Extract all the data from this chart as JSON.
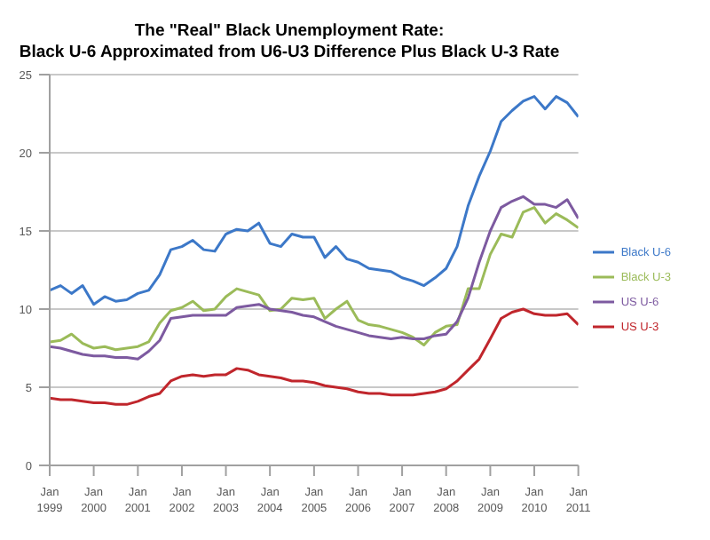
{
  "chart_data": {
    "type": "line",
    "title": "The \"Real\" Black Unemployment Rate:",
    "subtitle": "Black U-6 Approximated from U6-U3 Difference Plus Black U-3 Rate",
    "x": [
      "1999-01",
      "1999-04",
      "1999-07",
      "1999-10",
      "2000-01",
      "2000-04",
      "2000-07",
      "2000-10",
      "2001-01",
      "2001-04",
      "2001-07",
      "2001-10",
      "2002-01",
      "2002-04",
      "2002-07",
      "2002-10",
      "2003-01",
      "2003-04",
      "2003-07",
      "2003-10",
      "2004-01",
      "2004-04",
      "2004-07",
      "2004-10",
      "2005-01",
      "2005-04",
      "2005-07",
      "2005-10",
      "2006-01",
      "2006-04",
      "2006-07",
      "2006-10",
      "2007-01",
      "2007-04",
      "2007-07",
      "2007-10",
      "2008-01",
      "2008-04",
      "2008-07",
      "2008-10",
      "2009-01",
      "2009-04",
      "2009-07",
      "2009-10",
      "2010-01",
      "2010-04",
      "2010-07",
      "2010-10",
      "2011-01"
    ],
    "series": [
      {
        "name": "Black U-6",
        "color": "#3c78c8",
        "values": [
          11.2,
          11.5,
          11.0,
          11.5,
          10.3,
          10.8,
          10.5,
          10.6,
          11.0,
          11.2,
          12.2,
          13.8,
          14.0,
          14.4,
          13.8,
          13.7,
          14.8,
          15.1,
          15.0,
          15.5,
          14.2,
          14.0,
          14.8,
          14.6,
          14.6,
          13.3,
          14.0,
          13.2,
          13.0,
          12.6,
          12.5,
          12.4,
          12.0,
          11.8,
          11.5,
          12.0,
          12.6,
          14.0,
          16.6,
          18.5,
          20.1,
          22.0,
          22.7,
          23.3,
          23.6,
          22.8,
          23.6,
          23.2,
          22.3
        ]
      },
      {
        "name": "Black U-3",
        "color": "#9bbb59",
        "values": [
          7.9,
          8.0,
          8.4,
          7.8,
          7.5,
          7.6,
          7.4,
          7.5,
          7.6,
          7.9,
          9.1,
          9.9,
          10.1,
          10.5,
          9.9,
          10.0,
          10.8,
          11.3,
          11.1,
          10.9,
          9.9,
          10.0,
          10.7,
          10.6,
          10.7,
          9.4,
          10.0,
          10.5,
          9.3,
          9.0,
          8.9,
          8.7,
          8.5,
          8.2,
          7.7,
          8.5,
          8.9,
          9.0,
          11.3,
          11.3,
          13.5,
          14.8,
          14.6,
          16.2,
          16.5,
          15.5,
          16.1,
          15.7,
          15.2
        ]
      },
      {
        "name": "US U-6",
        "color": "#7d5aa0",
        "values": [
          7.6,
          7.5,
          7.3,
          7.1,
          7.0,
          7.0,
          6.9,
          6.9,
          6.8,
          7.3,
          8.0,
          9.4,
          9.5,
          9.6,
          9.6,
          9.6,
          9.6,
          10.1,
          10.2,
          10.3,
          10.0,
          9.9,
          9.8,
          9.6,
          9.5,
          9.2,
          8.9,
          8.7,
          8.5,
          8.3,
          8.2,
          8.1,
          8.2,
          8.1,
          8.1,
          8.3,
          8.4,
          9.2,
          10.7,
          13.0,
          15.0,
          16.5,
          16.9,
          17.2,
          16.7,
          16.7,
          16.5,
          17.0,
          15.8
        ]
      },
      {
        "name": "US U-3",
        "color": "#c0262c",
        "values": [
          4.3,
          4.2,
          4.2,
          4.1,
          4.0,
          4.0,
          3.9,
          3.9,
          4.1,
          4.4,
          4.6,
          5.4,
          5.7,
          5.8,
          5.7,
          5.8,
          5.8,
          6.2,
          6.1,
          5.8,
          5.7,
          5.6,
          5.4,
          5.4,
          5.3,
          5.1,
          5.0,
          4.9,
          4.7,
          4.6,
          4.6,
          4.5,
          4.5,
          4.5,
          4.6,
          4.7,
          4.9,
          5.4,
          6.1,
          6.8,
          8.1,
          9.4,
          9.8,
          10.0,
          9.7,
          9.6,
          9.6,
          9.7,
          9.0
        ]
      }
    ],
    "xlim": [
      "1999-01",
      "2011-01"
    ],
    "xticks": [
      {
        "value": "1999-01",
        "label": "Jan 1999"
      },
      {
        "value": "2000-01",
        "label": "Jan 2000"
      },
      {
        "value": "2001-01",
        "label": "Jan 2001"
      },
      {
        "value": "2002-01",
        "label": "Jan 2002"
      },
      {
        "value": "2003-01",
        "label": "Jan 2003"
      },
      {
        "value": "2004-01",
        "label": "Jan 2004"
      },
      {
        "value": "2005-01",
        "label": "Jan 2005"
      },
      {
        "value": "2006-01",
        "label": "Jan 2006"
      },
      {
        "value": "2007-01",
        "label": "Jan 2007"
      },
      {
        "value": "2008-01",
        "label": "Jan 2008"
      },
      {
        "value": "2009-01",
        "label": "Jan 2009"
      },
      {
        "value": "2010-01",
        "label": "Jan 2010"
      },
      {
        "value": "2011-01",
        "label": "Jan 2011"
      }
    ],
    "ylim": [
      0,
      25
    ],
    "yticks": [
      0,
      5,
      10,
      15,
      20,
      25
    ],
    "grid": "y",
    "legend": "right",
    "marker": "none",
    "line_style": "solid"
  }
}
